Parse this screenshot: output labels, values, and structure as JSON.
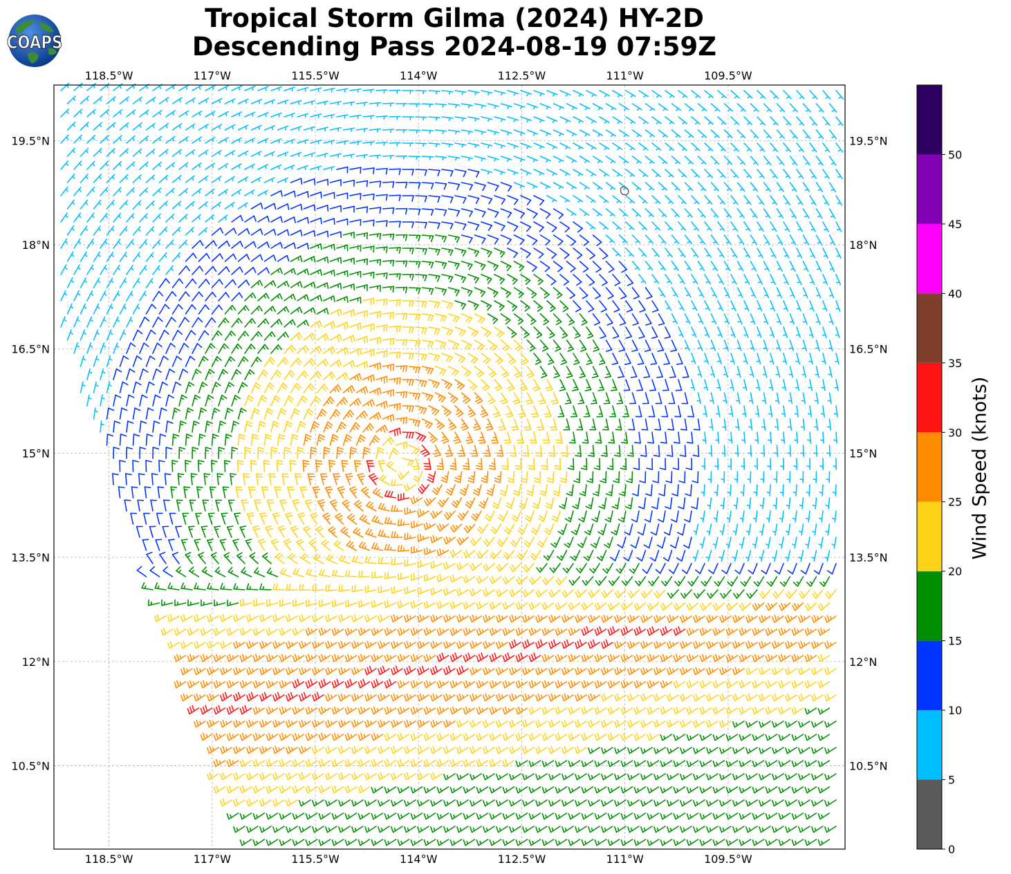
{
  "header": {
    "title_line1": "Tropical Storm Gilma (2024) HY-2D",
    "title_line2": "Descending Pass 2024-08-19 07:59Z",
    "logo_text": "COAPS"
  },
  "map": {
    "lon_range": [
      -119.3,
      -107.8
    ],
    "lat_range": [
      9.3,
      20.3
    ],
    "lon_ticks": [
      {
        "lon": -118.5,
        "label": "118.5°W"
      },
      {
        "lon": -117.0,
        "label": "117°W"
      },
      {
        "lon": -115.5,
        "label": "115.5°W"
      },
      {
        "lon": -114.0,
        "label": "114°W"
      },
      {
        "lon": -112.5,
        "label": "112.5°W"
      },
      {
        "lon": -111.0,
        "label": "111°W"
      },
      {
        "lon": -109.5,
        "label": "109.5°W"
      }
    ],
    "lat_ticks": [
      {
        "lat": 19.5,
        "label": "19.5°N"
      },
      {
        "lat": 18.0,
        "label": "18°N"
      },
      {
        "lat": 16.5,
        "label": "16.5°N"
      },
      {
        "lat": 15.0,
        "label": "15°N"
      },
      {
        "lat": 13.5,
        "label": "13.5°N"
      },
      {
        "lat": 12.0,
        "label": "12°N"
      },
      {
        "lat": 10.5,
        "label": "10.5°N"
      }
    ],
    "gridlines": true,
    "storm_center": {
      "lon": -114.25,
      "lat": 14.85
    },
    "island": {
      "lon": -111.0,
      "lat": 18.75
    },
    "wind_field": "wind barbs, cyclonic circulation around storm center; stronger southwesterly band along 12-13°N"
  },
  "colorbar": {
    "label": "Wind Speed (knots)",
    "ticks": [
      "0",
      "5",
      "10",
      "15",
      "20",
      "25",
      "30",
      "35",
      "40",
      "45",
      "50"
    ],
    "bins": [
      {
        "from": 0,
        "to": 5,
        "color": "#595959"
      },
      {
        "from": 5,
        "to": 10,
        "color": "#00bfff"
      },
      {
        "from": 10,
        "to": 15,
        "color": "#0033ff"
      },
      {
        "from": 15,
        "to": 20,
        "color": "#008f00"
      },
      {
        "from": 20,
        "to": 25,
        "color": "#ffd21a"
      },
      {
        "from": 25,
        "to": 30,
        "color": "#ff8c00"
      },
      {
        "from": 30,
        "to": 35,
        "color": "#ff1414"
      },
      {
        "from": 35,
        "to": 40,
        "color": "#803f2a"
      },
      {
        "from": 40,
        "to": 45,
        "color": "#ff00ff"
      },
      {
        "from": 45,
        "to": 50,
        "color": "#8000b3"
      },
      {
        "from": 50,
        "to": 55,
        "color": "#2d0060"
      }
    ]
  }
}
